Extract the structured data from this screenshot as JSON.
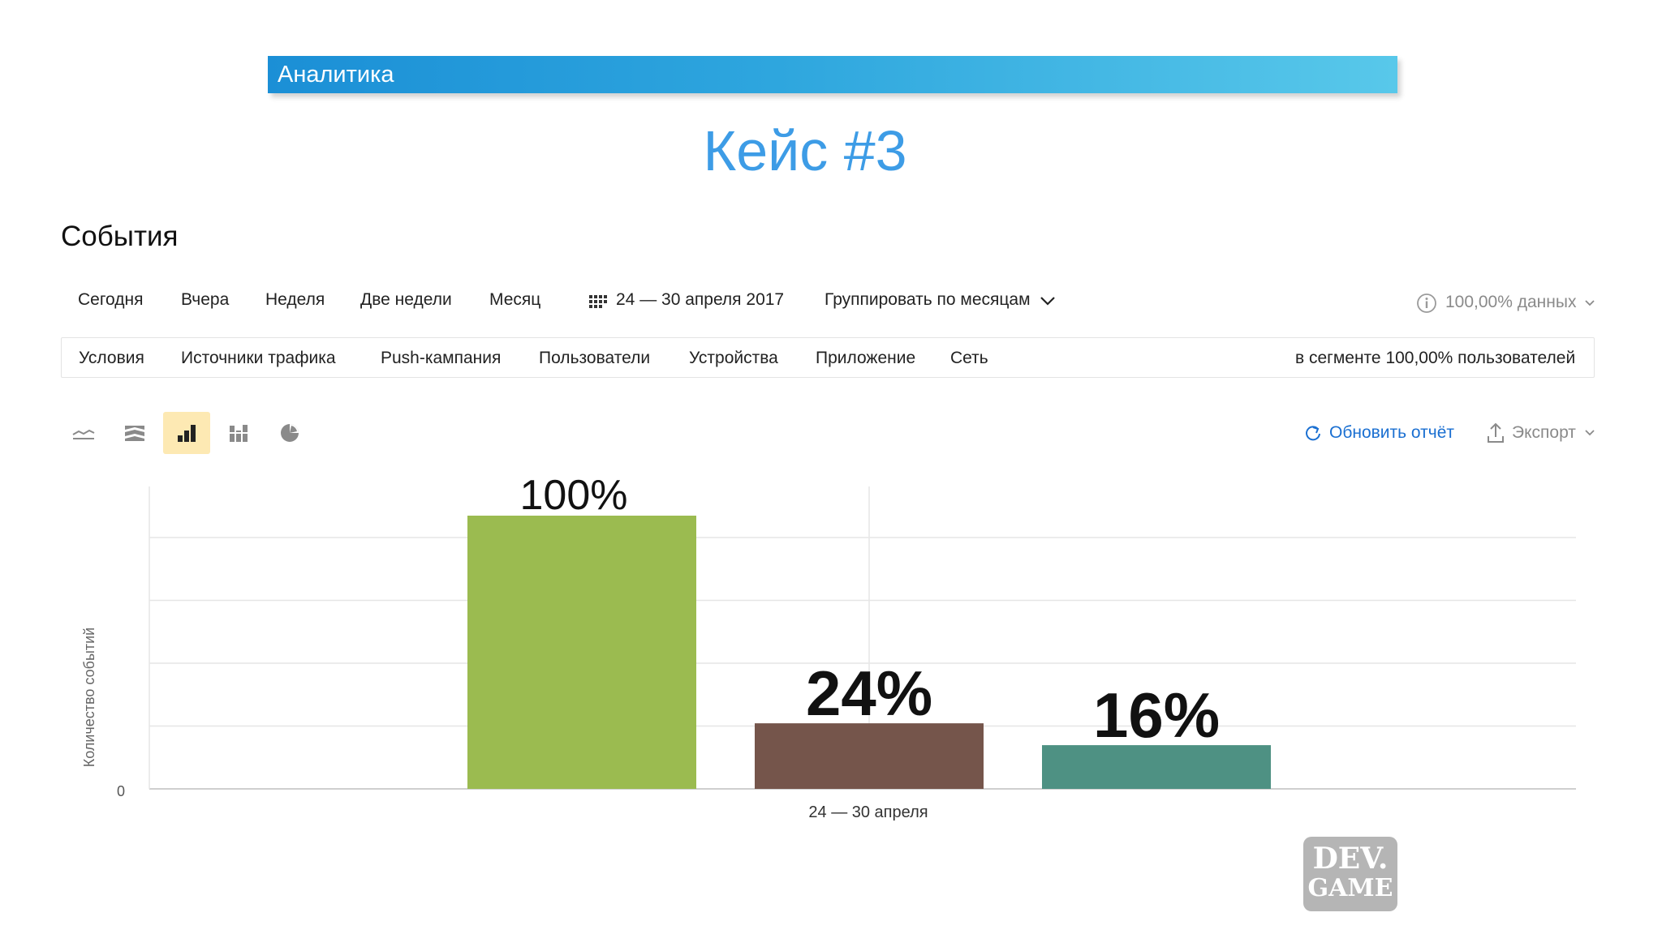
{
  "banner": {
    "title": "Аналитика"
  },
  "slide": {
    "title": "Кейс #3"
  },
  "section": {
    "title": "События"
  },
  "periods": [
    "Сегодня",
    "Вчера",
    "Неделя",
    "Две недели",
    "Месяц"
  ],
  "date_range": "24 — 30 апреля 2017",
  "group_by": "Группировать по месяцам",
  "data_share": "100,00% данных",
  "filters": [
    "Условия",
    "Источники трафика",
    "Push-кампания",
    "Пользователи",
    "Устройства",
    "Приложение",
    "Сеть"
  ],
  "segment_text": "в сегменте 100,00% пользователей",
  "chart_types": [
    "line-icon",
    "stacked-area-icon",
    "bar-chart-icon",
    "stacked-bar-icon",
    "pie-chart-icon"
  ],
  "active_chart_type": "bar-chart-icon",
  "actions": {
    "refresh": "Обновить отчёт",
    "export": "Экспорт"
  },
  "colors": {
    "banner": "#1b8fd6",
    "title": "#3d9ce6",
    "link": "#1a6fd1",
    "active_chart_bg": "#fde9b3"
  },
  "logo": {
    "line1": "DEV.",
    "line2": "GAME"
  },
  "chart_data": {
    "type": "bar",
    "ylabel": "Количество событий",
    "y_tick_labels": [
      "0"
    ],
    "categories": [
      "24 — 30 апреля"
    ],
    "series": [
      {
        "value": 100,
        "label": "100%",
        "color": "#9bbb50"
      },
      {
        "value": 24,
        "label": "24%",
        "color": "#75554b"
      },
      {
        "value": 16,
        "label": "16%",
        "color": "#4e9183"
      }
    ],
    "grid": true
  }
}
